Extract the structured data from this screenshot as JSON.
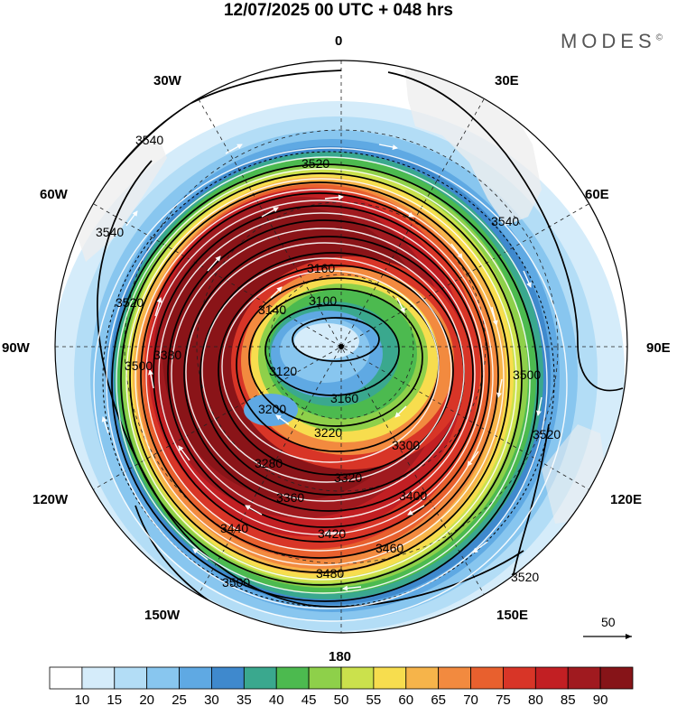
{
  "title": "12/07/2025  00 UTC  + 048 hrs",
  "brand": "MODES",
  "brand_mark": "©",
  "longitude_labels": {
    "top": "0",
    "top_right": "30E",
    "upper_right": "60E",
    "right": "90E",
    "lower_right": "120E",
    "bottom_right": "150E",
    "bottom": "180",
    "bottom_left": "150W",
    "lower_left": "120W",
    "left": "90W",
    "upper_left": "60W",
    "top_left": "30W"
  },
  "contour_labels": {
    "c3100": "3100",
    "c3120": "3120",
    "c3140": "3140",
    "c3160a": "3160",
    "c3160b": "3160",
    "c3200": "3200",
    "c3220": "3220",
    "c3280": "3280",
    "c3300": "3300",
    "c3320": "3320",
    "c3360": "3360",
    "c3380": "3380",
    "c3400": "3400",
    "c3420": "3420",
    "c3440": "3440",
    "c3460": "3460",
    "c3480": "3480",
    "c3500a": "3500",
    "c3500b": "3500",
    "c3500c": "3500",
    "c3520a": "3520",
    "c3520b": "3520",
    "c3520c": "3520",
    "c3520d": "3520",
    "c3540a": "3540",
    "c3540b": "3540",
    "c3540c": "3540"
  },
  "vector_reference": "50",
  "colorbar": {
    "labels": [
      "10",
      "15",
      "20",
      "25",
      "30",
      "35",
      "40",
      "45",
      "50",
      "55",
      "60",
      "65",
      "70",
      "75",
      "80",
      "85",
      "90"
    ],
    "colors": [
      "#ffffff",
      "#d5ecfa",
      "#b3ddf6",
      "#88c6ef",
      "#5fa9e3",
      "#3f89cd",
      "#3aa88e",
      "#4cba4f",
      "#8ed04a",
      "#cbe14c",
      "#f7dd4e",
      "#f6b44a",
      "#f28a3f",
      "#e8602e",
      "#d83527",
      "#c21f23",
      "#a01a1f",
      "#861418"
    ]
  }
}
